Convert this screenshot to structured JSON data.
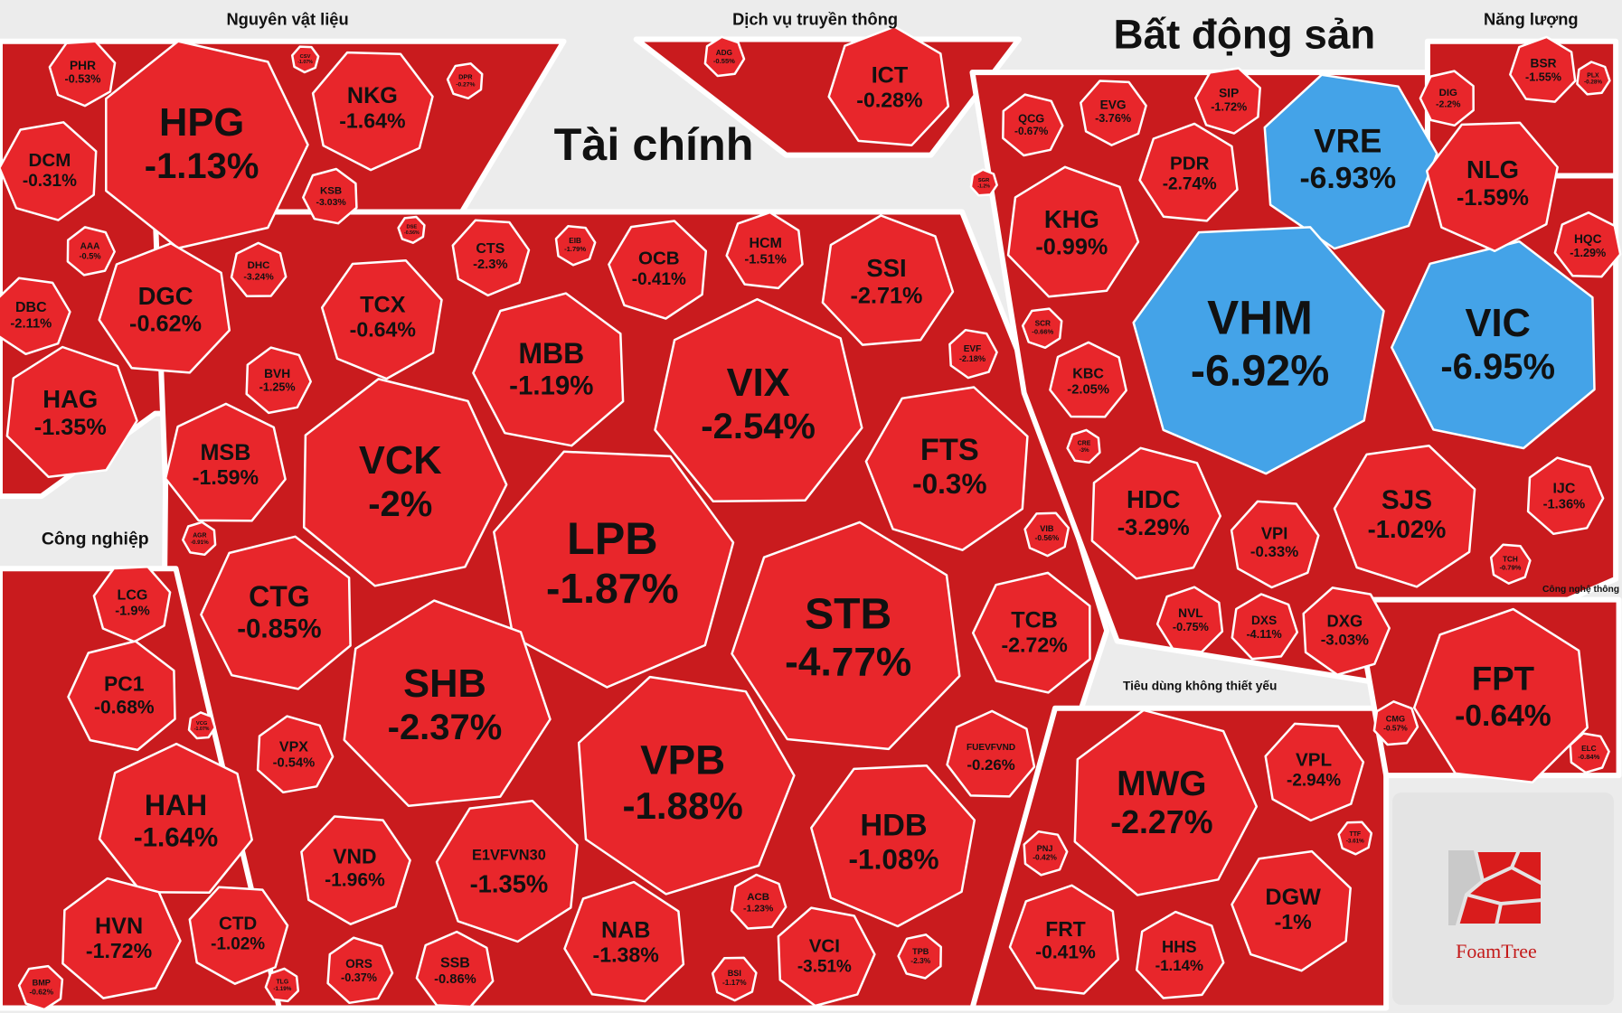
{
  "chart_data": {
    "type": "treemap",
    "color": "#e8262b",
    "logo": "FoamTree",
    "groups": [
      {
        "name": "Nguyên vật liệu",
        "items": [
          {
            "name": "HPG",
            "value": -1.13,
            "value_label": "-1.13%"
          },
          {
            "name": "NKG",
            "value": -1.64,
            "value_label": "-1.64%"
          },
          {
            "name": "DCM",
            "value": -0.31,
            "value_label": "-0.31%"
          },
          {
            "name": "DGC",
            "value": -0.62,
            "value_label": "-0.62%"
          },
          {
            "name": "HAG",
            "value": -1.35,
            "value_label": "-1.35%"
          },
          {
            "name": "DBC",
            "value": -2.11,
            "value_label": "-2.11%"
          },
          {
            "name": "PHR",
            "value": -0.53,
            "value_label": "-0.53%"
          },
          {
            "name": "KSB",
            "value": -3.03,
            "value_label": "-3.03%"
          },
          {
            "name": "DHC",
            "value": -3.24,
            "value_label": "-3.24%"
          },
          {
            "name": "AAA",
            "value": -0.5,
            "value_label": "-0.5%"
          },
          {
            "name": "CSV",
            "value": -1.07,
            "value_label": "-1.07%"
          },
          {
            "name": "DPR",
            "value": -0.27,
            "value_label": "-0.27%"
          }
        ]
      },
      {
        "name": "Dịch vụ truyền thông",
        "items": [
          {
            "name": "ICT",
            "value": -0.28,
            "value_label": "-0.28%"
          },
          {
            "name": "ADG",
            "value": -0.55,
            "value_label": "-0.55%"
          }
        ]
      },
      {
        "name": "Tài chính",
        "items": [
          {
            "name": "TCX",
            "value": -0.64,
            "value_label": "-0.64%"
          },
          {
            "name": "MBB",
            "value": -1.19,
            "value_label": "-1.19%"
          },
          {
            "name": "VIX",
            "value": -2.54,
            "value_label": "-2.54%"
          },
          {
            "name": "VCK",
            "value": -2,
            "value_label": "-2%"
          },
          {
            "name": "LPB",
            "value": -1.87,
            "value_label": "-1.87%"
          },
          {
            "name": "FTS",
            "value": -0.3,
            "value_label": "-0.3%"
          },
          {
            "name": "STB",
            "value": -4.77,
            "value_label": "-4.77%"
          },
          {
            "name": "SHB",
            "value": -2.37,
            "value_label": "-2.37%"
          },
          {
            "name": "VPB",
            "value": -1.88,
            "value_label": "-1.88%"
          },
          {
            "name": "HDB",
            "value": -1.08,
            "value_label": "-1.08%"
          },
          {
            "name": "CTG",
            "value": -0.85,
            "value_label": "-0.85%"
          },
          {
            "name": "MSB",
            "value": -1.59,
            "value_label": "-1.59%"
          },
          {
            "name": "BVH",
            "value": -1.25,
            "value_label": "-1.25%"
          },
          {
            "name": "CTS",
            "value": -2.3,
            "value_label": "-2.3%"
          },
          {
            "name": "OCB",
            "value": -0.41,
            "value_label": "-0.41%"
          },
          {
            "name": "HCM",
            "value": -1.51,
            "value_label": "-1.51%"
          },
          {
            "name": "SSI",
            "value": -2.71,
            "value_label": "-2.71%"
          },
          {
            "name": "EVF",
            "value": -2.18,
            "value_label": "-2.18%"
          },
          {
            "name": "VIB",
            "value": -0.56,
            "value_label": "-0.56%"
          },
          {
            "name": "TCB",
            "value": -2.72,
            "value_label": "-2.72%"
          },
          {
            "name": "FUEVFVND",
            "value": -0.26,
            "value_label": "-0.26%"
          },
          {
            "name": "VPX",
            "value": -0.54,
            "value_label": "-0.54%"
          },
          {
            "name": "VND",
            "value": -1.96,
            "value_label": "-1.96%"
          },
          {
            "name": "E1VFVN30",
            "value": -1.35,
            "value_label": "-1.35%"
          },
          {
            "name": "NAB",
            "value": -1.38,
            "value_label": "-1.38%"
          },
          {
            "name": "ACB",
            "value": -1.23,
            "value_label": "-1.23%"
          },
          {
            "name": "VCI",
            "value": -3.51,
            "value_label": "-3.51%"
          },
          {
            "name": "BSI",
            "value": -1.17,
            "value_label": "-1.17%"
          },
          {
            "name": "TPB",
            "value": -2.3,
            "value_label": "-2.3%"
          },
          {
            "name": "SSB",
            "value": -0.86,
            "value_label": "-0.86%"
          },
          {
            "name": "ORS",
            "value": -0.37,
            "value_label": "-0.37%"
          },
          {
            "name": "EIB",
            "value": -1.79,
            "value_label": "-1.79%"
          },
          {
            "name": "DSE",
            "value": -0.56,
            "value_label": "-0.56%"
          },
          {
            "name": "AGR",
            "value": -0.91,
            "value_label": "-0.91%"
          }
        ]
      },
      {
        "name": "Bất động sản",
        "items": [
          {
            "name": "QCG",
            "value": -0.67,
            "value_label": "-0.67%"
          },
          {
            "name": "EVG",
            "value": -3.76,
            "value_label": "-3.76%"
          },
          {
            "name": "SIP",
            "value": -1.72,
            "value_label": "-1.72%"
          },
          {
            "name": "PDR",
            "value": -2.74,
            "value_label": "-2.74%"
          },
          {
            "name": "KHG",
            "value": -0.99,
            "value_label": "-0.99%"
          },
          {
            "name": "VRE",
            "value": -6.93,
            "value_label": "-6.93%",
            "color": "#44a3e8"
          },
          {
            "name": "VHM",
            "value": -6.92,
            "value_label": "-6.92%",
            "color": "#44a3e8"
          },
          {
            "name": "VIC",
            "value": -6.95,
            "value_label": "-6.95%",
            "color": "#44a3e8"
          },
          {
            "name": "KBC",
            "value": -2.05,
            "value_label": "-2.05%"
          },
          {
            "name": "HDC",
            "value": -3.29,
            "value_label": "-3.29%"
          },
          {
            "name": "VPI",
            "value": -0.33,
            "value_label": "-0.33%"
          },
          {
            "name": "SJS",
            "value": -1.02,
            "value_label": "-1.02%"
          },
          {
            "name": "NVL",
            "value": -0.75,
            "value_label": "-0.75%"
          },
          {
            "name": "DXS",
            "value": -4.11,
            "value_label": "-4.11%"
          },
          {
            "name": "DXG",
            "value": -3.03,
            "value_label": "-3.03%"
          },
          {
            "name": "NLG",
            "value": -1.59,
            "value_label": "-1.59%"
          },
          {
            "name": "DIG",
            "value": -2.2,
            "value_label": "-2.2%"
          },
          {
            "name": "HQC",
            "value": -1.29,
            "value_label": "-1.29%"
          },
          {
            "name": "IJC",
            "value": -1.36,
            "value_label": "-1.36%"
          },
          {
            "name": "TCH",
            "value": -0.79,
            "value_label": "-0.79%"
          },
          {
            "name": "SCR",
            "value": -0.66,
            "value_label": "-0.66%"
          },
          {
            "name": "CRE",
            "value": -3,
            "value_label": "-3%"
          },
          {
            "name": "SGR",
            "value": -1.2,
            "value_label": "-1.2%"
          }
        ]
      },
      {
        "name": "Năng lượng",
        "items": [
          {
            "name": "BSR",
            "value": -1.55,
            "value_label": "-1.55%"
          },
          {
            "name": "PLX",
            "value": -0.28,
            "value_label": "-0.28%"
          }
        ]
      },
      {
        "name": "Công nghiệp",
        "items": [
          {
            "name": "LCG",
            "value": -1.9,
            "value_label": "-1.9%"
          },
          {
            "name": "PC1",
            "value": -0.68,
            "value_label": "-0.68%"
          },
          {
            "name": "HAH",
            "value": -1.64,
            "value_label": "-1.64%"
          },
          {
            "name": "HVN",
            "value": -1.72,
            "value_label": "-1.72%"
          },
          {
            "name": "CTD",
            "value": -1.02,
            "value_label": "-1.02%"
          },
          {
            "name": "BMP",
            "value": -0.62,
            "value_label": "-0.62%"
          },
          {
            "name": "TLG",
            "value": -1.19,
            "value_label": "-1.19%"
          },
          {
            "name": "VCG",
            "value": -1.07,
            "value_label": "-1.07%"
          }
        ]
      },
      {
        "name": "Tiêu dùng không thiết yếu",
        "items": [
          {
            "name": "MWG",
            "value": -2.27,
            "value_label": "-2.27%"
          },
          {
            "name": "VPL",
            "value": -2.94,
            "value_label": "-2.94%"
          },
          {
            "name": "DGW",
            "value": -1,
            "value_label": "-1%"
          },
          {
            "name": "FRT",
            "value": -0.41,
            "value_label": "-0.41%"
          },
          {
            "name": "HHS",
            "value": -1.14,
            "value_label": "-1.14%"
          },
          {
            "name": "PNJ",
            "value": -0.42,
            "value_label": "-0.42%"
          },
          {
            "name": "TTF",
            "value": -3.61,
            "value_label": "-3.61%"
          }
        ]
      },
      {
        "name": "Công nghệ thông tin",
        "items": [
          {
            "name": "FPT",
            "value": -0.64,
            "value_label": "-0.64%"
          },
          {
            "name": "CMG",
            "value": -0.57,
            "value_label": "-0.57%"
          },
          {
            "name": "ELC",
            "value": -0.84,
            "value_label": "-0.84%"
          }
        ]
      }
    ]
  }
}
